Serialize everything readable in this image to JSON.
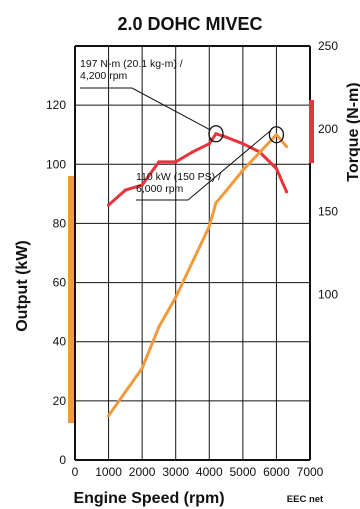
{
  "chart_data": {
    "type": "line",
    "title": "2.0 DOHC MIVEC",
    "xlabel": "Engine Speed (rpm)",
    "ylabel_left": "Output (kW)",
    "ylabel_right": "Torque (N-m)",
    "footnote": "EEC net",
    "xlim": [
      0,
      7000
    ],
    "ylim_left": [
      0,
      140
    ],
    "ylim_right": [
      0,
      250
    ],
    "x_ticks": [
      0,
      1000,
      2000,
      3000,
      4000,
      5000,
      6000,
      7000
    ],
    "left_ticks": [
      0,
      20,
      40,
      60,
      80,
      100,
      120
    ],
    "right_ticks": [
      100,
      150,
      200,
      250
    ],
    "grid": true,
    "series": [
      {
        "axis": "right",
        "color": "#e8323c",
        "x": [
          1000,
          1500,
          2000,
          2500,
          3000,
          3500,
          4000,
          4200,
          4500,
          5000,
          5500,
          6000,
          6300
        ],
        "values": [
          154,
          163,
          166,
          180,
          180,
          186,
          191,
          197,
          195,
          191,
          186,
          176,
          162
        ]
      },
      {
        "axis": "left",
        "color": "#f39a3c",
        "x": [
          1000,
          2000,
          2500,
          3000,
          4000,
          4200,
          4500,
          5000,
          5500,
          6000,
          6300
        ],
        "values": [
          15,
          31,
          45,
          55,
          79,
          87,
          91,
          98,
          104,
          110,
          106
        ]
      }
    ],
    "annotations": [
      {
        "line1": "197 N-m (20.1 kg-m) /",
        "line2": "4,200 rpm",
        "x": 4200,
        "value": 197,
        "axis": "right"
      },
      {
        "line1": "110 kW (150 PS) /",
        "line2": "6,000 rpm",
        "x": 6000,
        "value": 110,
        "axis": "left"
      }
    ]
  }
}
